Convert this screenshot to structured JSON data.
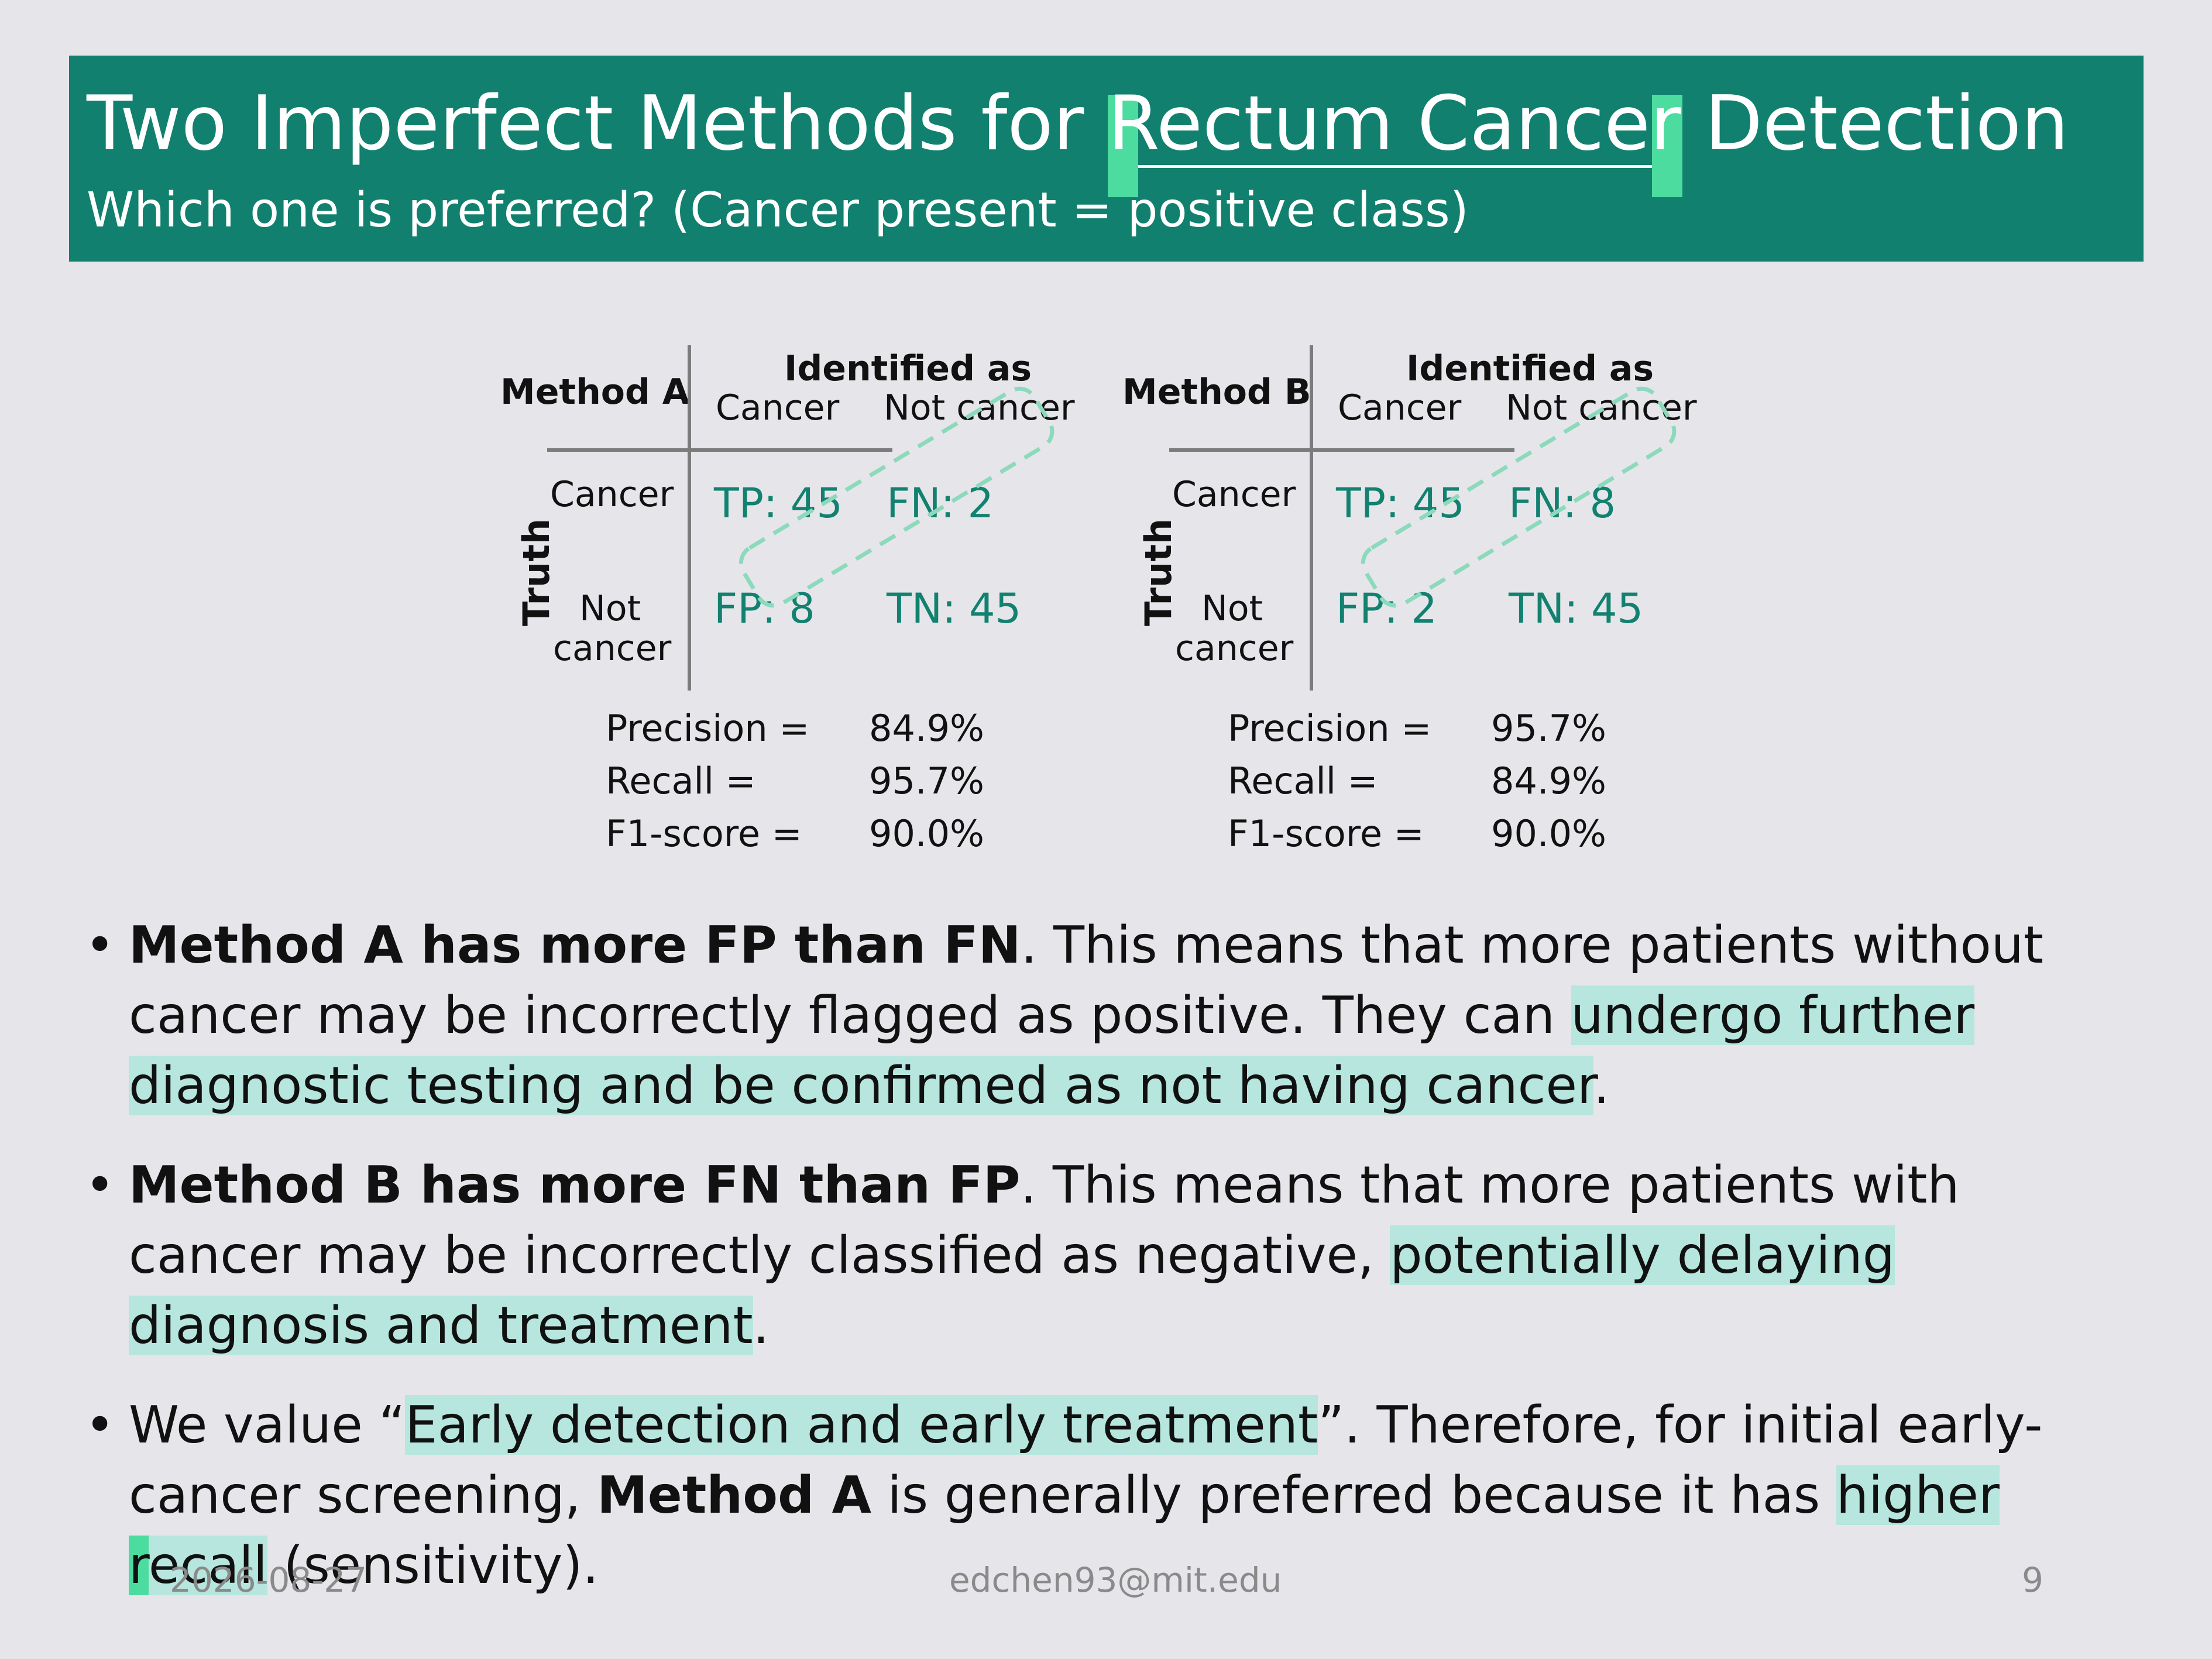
{
  "header": {
    "title_pre": "Two Imperfect Methods for ",
    "title_underlined": "Rectum Cancer",
    "title_post": " Detection",
    "subtitle": "Which one is preferred? (Cancer present = positive class)"
  },
  "matrices": [
    {
      "method": "Method A",
      "identified_as": "Identified as",
      "col_cancer": "Cancer",
      "col_not_cancer": "Not cancer",
      "row_cancer": "Cancer",
      "row_not": "Not",
      "row_cancer2": "cancer",
      "truth": "Truth",
      "tp": "TP: 45",
      "fn": "FN: 2",
      "fp": "FP: 8",
      "tn": "TN: 45",
      "precision_label": "Precision =",
      "precision_value": "84.9%",
      "recall_label": "Recall =",
      "recall_value": "95.7%",
      "f1_label": "F1-score =",
      "f1_value": "90.0%"
    },
    {
      "method": "Method B",
      "identified_as": "Identified as",
      "col_cancer": "Cancer",
      "col_not_cancer": "Not cancer",
      "row_cancer": "Cancer",
      "row_not": "Not",
      "row_cancer2": "cancer",
      "truth": "Truth",
      "tp": "TP: 45",
      "fn": "FN: 8",
      "fp": "FP: 2",
      "tn": "TN: 45",
      "precision_label": "Precision =",
      "precision_value": "95.7%",
      "recall_label": "Recall =",
      "recall_value": "84.9%",
      "f1_label": "F1-score =",
      "f1_value": "90.0%"
    }
  ],
  "bullets": {
    "b1_bold": "Method A has more FP than FN",
    "b1_text": ". This means that more patients without cancer may be incorrectly flagged as positive. They can ",
    "b1_highlight": "undergo further diagnostic testing and be confirmed as not having cancer",
    "b1_end": ".",
    "b2_bold": "Method B has more FN than FP",
    "b2_text": ". This means that more patients with cancer may be incorrectly classified as negative, ",
    "b2_highlight": "potentially delaying diagnosis and treatment",
    "b2_end": ".",
    "b3_pre": "We value “",
    "b3_highlight": "Early detection and early treatment",
    "b3_mid": "”. Therefore, for initial early-cancer screening, ",
    "b3_bold": "Method A",
    "b3_mid2": " is generally preferred because it has ",
    "b3_hl_a": "higher ",
    "b3_hl_cursor": "r",
    "b3_hl_b": "ecall",
    "b3_end": " (sensitivity)."
  },
  "footer": {
    "date": "2026-08-27",
    "email": "edchen93@mit.edu",
    "page": "9"
  },
  "colors": {
    "header_bg": "#11806f",
    "value_teal": "#128170",
    "highlight": "#b6e6de",
    "cursor_highlight": "#4cdc9f"
  }
}
